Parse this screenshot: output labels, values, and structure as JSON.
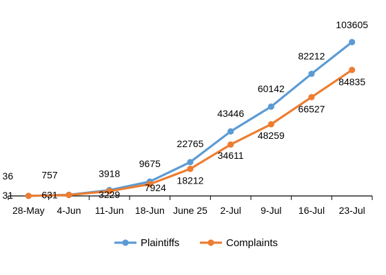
{
  "chart_data": {
    "type": "line",
    "title": "",
    "xlabel": "",
    "ylabel": "",
    "categories": [
      "28-May",
      "4-Jun",
      "11-Jun",
      "18-Jun",
      "June 25",
      "2-Jul",
      "9-Jul",
      "16-Jul",
      "23-Jul"
    ],
    "series": [
      {
        "name": "Plaintiffs",
        "color": "#5B9BD5",
        "values": [
          36,
          757,
          3918,
          9675,
          22765,
          43446,
          60142,
          82212,
          103605
        ]
      },
      {
        "name": "Complaints",
        "color": "#ED7D31",
        "values": [
          31,
          631,
          3229,
          7924,
          18212,
          34611,
          48259,
          66527,
          84835
        ]
      }
    ],
    "ylim": [
      0,
      120000
    ],
    "grid": false,
    "y_axis_visible": false,
    "legend_position": "bottom"
  }
}
